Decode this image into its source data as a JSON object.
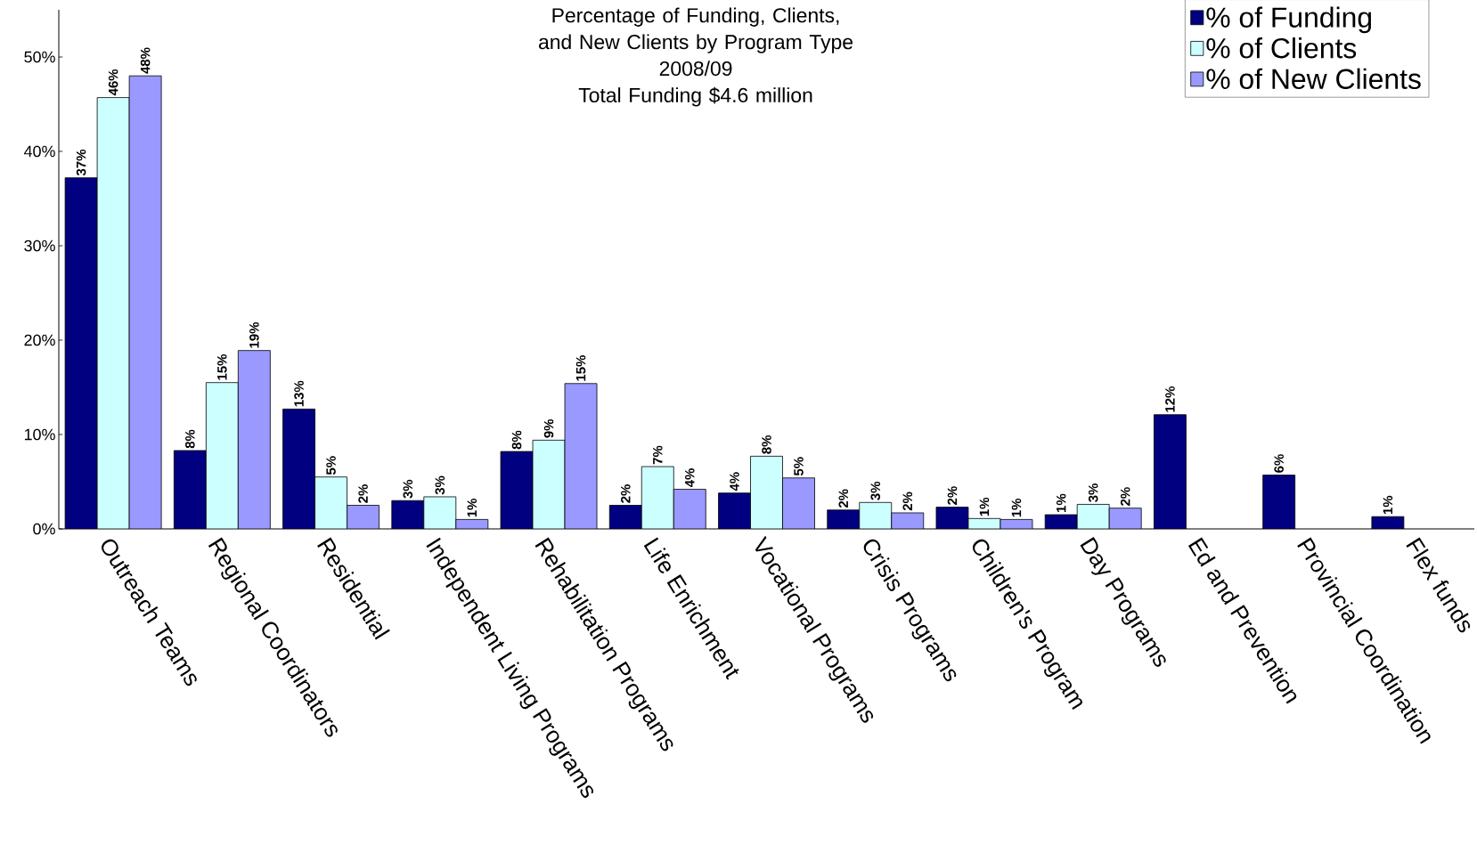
{
  "chart_data": {
    "type": "bar",
    "title": "Percentage of Funding, Clients, and New Clients by Program Type",
    "subtitle": "2008/09",
    "annotations": [
      "Total Funding $4.6 million"
    ],
    "categories": [
      "Outreach Teams",
      "Regional Coordinators",
      "Residential",
      "Independent Living Programs",
      "Rehabilitation Programs",
      "Life Enrichment",
      "Vocational Programs",
      "Crisis Programs",
      "Children's Program",
      "Day Programs",
      "Ed and Prevention",
      "Provincial Coordination",
      "Flex funds"
    ],
    "series": [
      {
        "name": "% of Funding",
        "color": "#000080",
        "values": [
          37.2,
          8.3,
          12.7,
          3.0,
          8.2,
          2.5,
          3.8,
          2.0,
          2.3,
          1.5,
          12.1,
          5.7,
          1.3
        ],
        "value_labels": [
          "37%",
          "8%",
          "13%",
          "3%",
          "8%",
          "2%",
          "4%",
          "2%",
          "2%",
          "1%",
          "12%",
          "6%",
          "1%"
        ]
      },
      {
        "name": "% of Clients",
        "color": "#ccffff",
        "values": [
          45.7,
          15.5,
          5.5,
          3.4,
          9.4,
          6.6,
          7.7,
          2.8,
          1.1,
          2.6,
          null,
          null,
          null
        ],
        "value_labels": [
          "46%",
          "15%",
          "5%",
          "3%",
          "9%",
          "7%",
          "8%",
          "3%",
          "1%",
          "3%",
          null,
          null,
          null
        ]
      },
      {
        "name": "% of New Clients",
        "color": "#9999ff",
        "values": [
          48.0,
          18.9,
          2.5,
          1.0,
          15.4,
          4.2,
          5.4,
          1.7,
          1.0,
          2.2,
          null,
          null,
          null
        ],
        "value_labels": [
          "48%",
          "19%",
          "2%",
          "1%",
          "15%",
          "4%",
          "5%",
          "2%",
          "1%",
          "2%",
          null,
          null,
          null
        ]
      }
    ],
    "ylim": [
      0,
      55
    ],
    "yticks": [
      {
        "value": 0,
        "label": "0%"
      },
      {
        "value": 10,
        "label": "10%"
      },
      {
        "value": 20,
        "label": "20%"
      },
      {
        "value": 30,
        "label": "30%"
      },
      {
        "value": 40,
        "label": "40%"
      },
      {
        "value": 50,
        "label": "50%"
      }
    ],
    "legend": "top right",
    "grid": false
  }
}
